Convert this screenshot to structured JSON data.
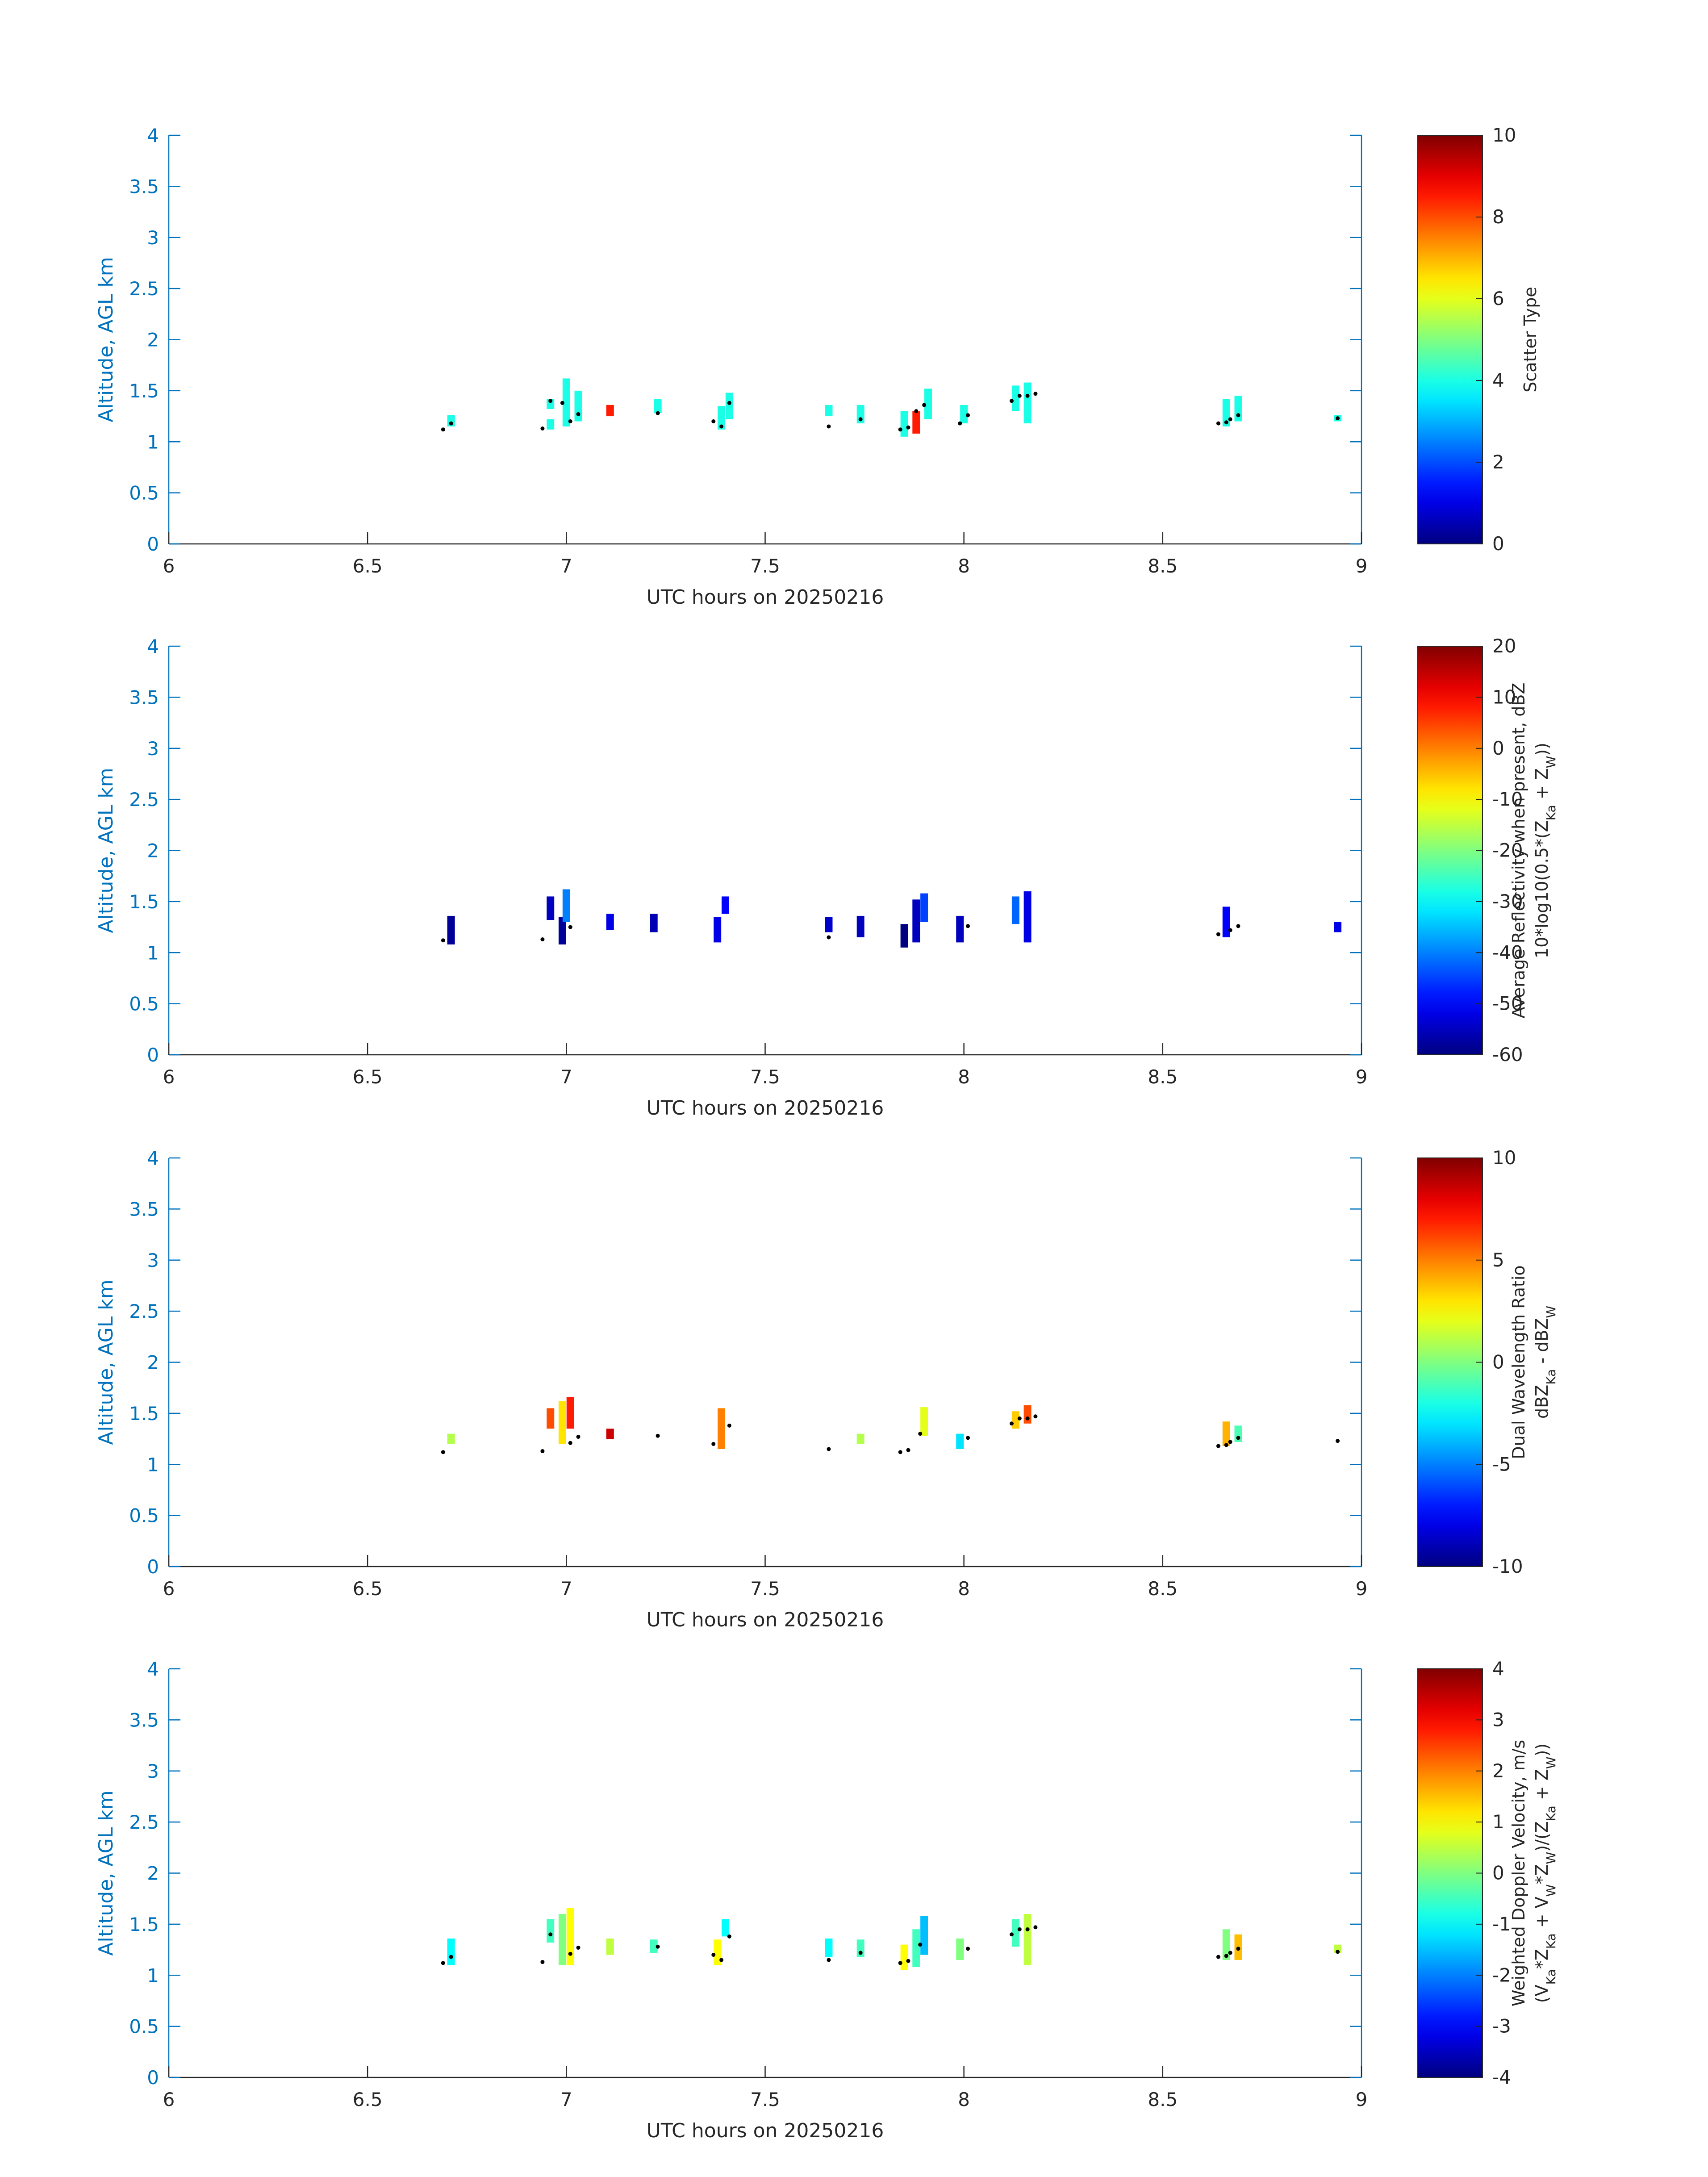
{
  "figure": {
    "date_label": "UTC hours on 20250216"
  },
  "colors": {
    "axis": "#0072bd",
    "text_dark": "#262626",
    "rain_marker": "#000000"
  },
  "colormap": "jet",
  "chart_data": [
    {
      "type": "heatmap",
      "xlabel": "UTC hours on 20250216",
      "ylabel": "Altitude, AGL km",
      "xlim": [
        6,
        9
      ],
      "ylim": [
        0,
        4
      ],
      "xticks": [
        "6",
        "6.5",
        "7",
        "7.5",
        "8",
        "8.5",
        "9"
      ],
      "yticks": [
        "0",
        "0.5",
        "1",
        "1.5",
        "2",
        "2.5",
        "3",
        "3.5",
        "4"
      ],
      "colorbar": {
        "title_lines": [
          "Scatter Type"
        ],
        "clim": [
          0,
          10
        ],
        "ticks": [
          "0",
          "2",
          "4",
          "6",
          "8",
          "10"
        ]
      },
      "cells": [
        [
          6.71,
          1.15,
          1.26,
          4
        ],
        [
          6.96,
          1.12,
          1.22,
          4
        ],
        [
          6.96,
          1.32,
          1.42,
          4
        ],
        [
          7.0,
          1.15,
          1.62,
          4
        ],
        [
          7.03,
          1.2,
          1.5,
          4
        ],
        [
          7.11,
          1.25,
          1.36,
          8.5
        ],
        [
          7.23,
          1.28,
          1.42,
          4
        ],
        [
          7.39,
          1.12,
          1.35,
          4
        ],
        [
          7.41,
          1.22,
          1.48,
          4
        ],
        [
          7.66,
          1.25,
          1.36,
          4
        ],
        [
          7.74,
          1.18,
          1.36,
          4
        ],
        [
          7.85,
          1.05,
          1.3,
          4
        ],
        [
          7.88,
          1.08,
          1.3,
          8.5
        ],
        [
          7.91,
          1.22,
          1.52,
          4
        ],
        [
          8.0,
          1.18,
          1.36,
          4
        ],
        [
          8.13,
          1.3,
          1.55,
          4
        ],
        [
          8.16,
          1.18,
          1.58,
          4
        ],
        [
          8.66,
          1.15,
          1.42,
          4
        ],
        [
          8.69,
          1.2,
          1.45,
          4
        ],
        [
          8.94,
          1.2,
          1.26,
          4
        ]
      ],
      "points": [
        [
          6.69,
          1.12
        ],
        [
          6.71,
          1.18
        ],
        [
          6.94,
          1.13
        ],
        [
          6.96,
          1.4
        ],
        [
          6.99,
          1.38
        ],
        [
          7.01,
          1.2
        ],
        [
          7.03,
          1.27
        ],
        [
          7.23,
          1.28
        ],
        [
          7.37,
          1.2
        ],
        [
          7.39,
          1.15
        ],
        [
          7.41,
          1.38
        ],
        [
          7.66,
          1.15
        ],
        [
          7.74,
          1.22
        ],
        [
          7.84,
          1.12
        ],
        [
          7.86,
          1.14
        ],
        [
          7.88,
          1.3
        ],
        [
          7.9,
          1.36
        ],
        [
          7.99,
          1.18
        ],
        [
          8.01,
          1.26
        ],
        [
          8.12,
          1.4
        ],
        [
          8.14,
          1.45
        ],
        [
          8.16,
          1.45
        ],
        [
          8.18,
          1.47
        ],
        [
          8.64,
          1.18
        ],
        [
          8.66,
          1.19
        ],
        [
          8.67,
          1.22
        ],
        [
          8.69,
          1.26
        ],
        [
          8.94,
          1.23
        ]
      ]
    },
    {
      "type": "heatmap",
      "xlabel": "UTC hours on 20250216",
      "ylabel": "Altitude, AGL km",
      "xlim": [
        6,
        9
      ],
      "ylim": [
        0,
        4
      ],
      "xticks": [
        "6",
        "6.5",
        "7",
        "7.5",
        "8",
        "8.5",
        "9"
      ],
      "yticks": [
        "0",
        "0.5",
        "1",
        "1.5",
        "2",
        "2.5",
        "3",
        "3.5",
        "4"
      ],
      "colorbar": {
        "title_lines": [
          "Average Reflectivity when present, dBZ",
          "10*log10(0.5*(Z_Ka + Z_W))"
        ],
        "clim": [
          -60,
          20
        ],
        "ticks": [
          "-60",
          "-50",
          "-40",
          "-30",
          "-20",
          "-10",
          "0",
          "10",
          "20"
        ]
      },
      "cells": [
        [
          6.71,
          1.08,
          1.36,
          -58
        ],
        [
          6.96,
          1.32,
          1.55,
          -55
        ],
        [
          6.99,
          1.08,
          1.35,
          -58
        ],
        [
          7.0,
          1.3,
          1.62,
          -40
        ],
        [
          7.11,
          1.22,
          1.38,
          -52
        ],
        [
          7.22,
          1.2,
          1.38,
          -56
        ],
        [
          7.38,
          1.1,
          1.35,
          -52
        ],
        [
          7.4,
          1.38,
          1.55,
          -50
        ],
        [
          7.66,
          1.2,
          1.35,
          -54
        ],
        [
          7.74,
          1.15,
          1.36,
          -55
        ],
        [
          7.85,
          1.05,
          1.28,
          -60
        ],
        [
          7.88,
          1.1,
          1.52,
          -55
        ],
        [
          7.9,
          1.3,
          1.58,
          -45
        ],
        [
          7.99,
          1.1,
          1.36,
          -55
        ],
        [
          8.13,
          1.28,
          1.55,
          -42
        ],
        [
          8.16,
          1.1,
          1.6,
          -52
        ],
        [
          8.66,
          1.15,
          1.45,
          -50
        ],
        [
          8.94,
          1.2,
          1.3,
          -52
        ]
      ],
      "points": [
        [
          6.69,
          1.12
        ],
        [
          6.94,
          1.13
        ],
        [
          7.01,
          1.25
        ],
        [
          7.66,
          1.15
        ],
        [
          8.01,
          1.26
        ],
        [
          8.64,
          1.18
        ],
        [
          8.67,
          1.22
        ],
        [
          8.69,
          1.26
        ]
      ]
    },
    {
      "type": "heatmap",
      "xlabel": "UTC hours on 20250216",
      "ylabel": "Altitude, AGL km",
      "xlim": [
        6,
        9
      ],
      "ylim": [
        0,
        4
      ],
      "xticks": [
        "6",
        "6.5",
        "7",
        "7.5",
        "8",
        "8.5",
        "9"
      ],
      "yticks": [
        "0",
        "0.5",
        "1",
        "1.5",
        "2",
        "2.5",
        "3",
        "3.5",
        "4"
      ],
      "colorbar": {
        "title_lines": [
          "Dual Wavelength Ratio",
          "dBZ_Ka - dBZ_W"
        ],
        "clim": [
          -10,
          10
        ],
        "ticks": [
          "-10",
          "-5",
          "0",
          "5",
          "10"
        ]
      },
      "cells": [
        [
          6.71,
          1.2,
          1.3,
          1
        ],
        [
          6.96,
          1.35,
          1.55,
          6
        ],
        [
          6.99,
          1.2,
          1.62,
          3
        ],
        [
          7.01,
          1.35,
          1.66,
          7
        ],
        [
          7.11,
          1.25,
          1.35,
          8.5
        ],
        [
          7.39,
          1.15,
          1.55,
          5
        ],
        [
          7.74,
          1.2,
          1.3,
          1
        ],
        [
          7.9,
          1.28,
          1.56,
          2
        ],
        [
          7.99,
          1.15,
          1.3,
          -3
        ],
        [
          8.13,
          1.35,
          1.52,
          3.5
        ],
        [
          8.16,
          1.4,
          1.58,
          6
        ],
        [
          8.66,
          1.18,
          1.42,
          4
        ],
        [
          8.69,
          1.22,
          1.38,
          -1
        ]
      ],
      "points": [
        [
          6.69,
          1.12
        ],
        [
          6.94,
          1.13
        ],
        [
          7.01,
          1.21
        ],
        [
          7.03,
          1.27
        ],
        [
          7.23,
          1.28
        ],
        [
          7.37,
          1.2
        ],
        [
          7.41,
          1.38
        ],
        [
          7.66,
          1.15
        ],
        [
          7.84,
          1.12
        ],
        [
          7.86,
          1.14
        ],
        [
          7.89,
          1.3
        ],
        [
          8.01,
          1.26
        ],
        [
          8.12,
          1.4
        ],
        [
          8.14,
          1.45
        ],
        [
          8.16,
          1.45
        ],
        [
          8.18,
          1.47
        ],
        [
          8.64,
          1.18
        ],
        [
          8.66,
          1.19
        ],
        [
          8.67,
          1.22
        ],
        [
          8.69,
          1.26
        ],
        [
          8.94,
          1.23
        ]
      ]
    },
    {
      "type": "heatmap",
      "xlabel": "UTC hours on 20250216",
      "ylabel": "Altitude, AGL km",
      "xlim": [
        6,
        9
      ],
      "ylim": [
        0,
        4
      ],
      "xticks": [
        "6",
        "6.5",
        "7",
        "7.5",
        "8",
        "8.5",
        "9"
      ],
      "yticks": [
        "0",
        "0.5",
        "1",
        "1.5",
        "2",
        "2.5",
        "3",
        "3.5",
        "4"
      ],
      "colorbar": {
        "title_lines": [
          "Weighted Doppler Velocity, m/s",
          "(V_Ka*Z_Ka + V_W*Z_W)/(Z_Ka + Z_W))"
        ],
        "clim": [
          -4,
          4
        ],
        "ticks": [
          "-4",
          "-3",
          "-2",
          "-1",
          "0",
          "1",
          "2",
          "3",
          "4"
        ]
      },
      "cells": [
        [
          6.71,
          1.1,
          1.36,
          -1
        ],
        [
          6.96,
          1.32,
          1.55,
          -0.5
        ],
        [
          6.99,
          1.1,
          1.6,
          0
        ],
        [
          7.01,
          1.1,
          1.66,
          1
        ],
        [
          7.11,
          1.2,
          1.36,
          0.5
        ],
        [
          7.22,
          1.22,
          1.35,
          -0.5
        ],
        [
          7.38,
          1.1,
          1.35,
          1
        ],
        [
          7.4,
          1.38,
          1.55,
          -1
        ],
        [
          7.66,
          1.18,
          1.36,
          -1
        ],
        [
          7.74,
          1.18,
          1.35,
          -0.5
        ],
        [
          7.85,
          1.05,
          1.3,
          1
        ],
        [
          7.88,
          1.08,
          1.45,
          -0.5
        ],
        [
          7.9,
          1.2,
          1.58,
          -1.5
        ],
        [
          7.99,
          1.15,
          1.36,
          0
        ],
        [
          8.13,
          1.28,
          1.55,
          -0.5
        ],
        [
          8.16,
          1.1,
          1.6,
          0.5
        ],
        [
          8.66,
          1.15,
          1.45,
          0
        ],
        [
          8.69,
          1.15,
          1.4,
          1.5
        ],
        [
          8.94,
          1.22,
          1.3,
          0.5
        ]
      ],
      "points": [
        [
          6.69,
          1.12
        ],
        [
          6.71,
          1.18
        ],
        [
          6.94,
          1.13
        ],
        [
          6.96,
          1.4
        ],
        [
          7.01,
          1.21
        ],
        [
          7.03,
          1.27
        ],
        [
          7.23,
          1.28
        ],
        [
          7.37,
          1.2
        ],
        [
          7.39,
          1.15
        ],
        [
          7.41,
          1.38
        ],
        [
          7.66,
          1.15
        ],
        [
          7.74,
          1.22
        ],
        [
          7.84,
          1.12
        ],
        [
          7.86,
          1.14
        ],
        [
          7.89,
          1.3
        ],
        [
          8.01,
          1.26
        ],
        [
          8.12,
          1.4
        ],
        [
          8.14,
          1.45
        ],
        [
          8.16,
          1.45
        ],
        [
          8.18,
          1.47
        ],
        [
          8.64,
          1.18
        ],
        [
          8.66,
          1.19
        ],
        [
          8.67,
          1.22
        ],
        [
          8.69,
          1.26
        ],
        [
          8.94,
          1.23
        ]
      ]
    }
  ]
}
